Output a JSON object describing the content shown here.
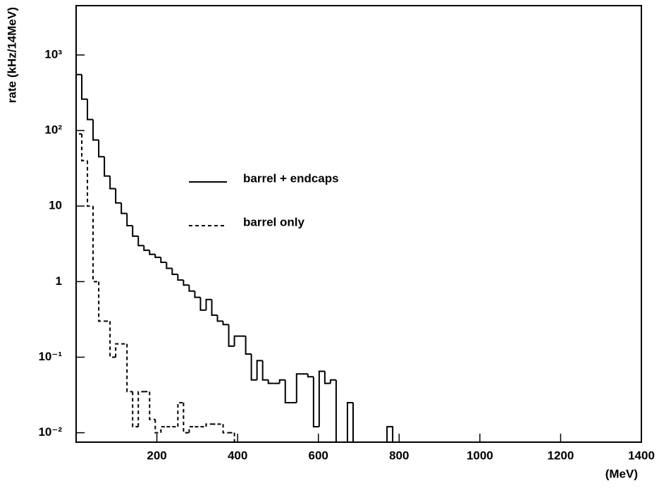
{
  "chart_data": {
    "type": "histogram",
    "y_label": "rate (kHz/14MeV)",
    "x_label": "(MeV)",
    "log_y": true,
    "xlim": [
      0,
      1400
    ],
    "xticks": [
      200,
      400,
      600,
      800,
      1000,
      1200,
      1400
    ],
    "ylim": [
      0.0075,
      4500
    ],
    "yticks": [
      {
        "value": 0.01,
        "label": "10⁻²"
      },
      {
        "value": 0.1,
        "label": "10⁻¹"
      },
      1,
      10,
      {
        "value": 100,
        "label": "10²"
      },
      {
        "value": 1000,
        "label": "10³"
      }
    ],
    "bins": [
      0,
      14,
      28,
      42,
      56,
      70,
      84,
      98,
      112,
      126,
      140,
      154,
      168,
      182,
      196,
      210,
      224,
      238,
      252,
      266,
      280,
      294,
      308,
      322,
      336,
      350,
      364,
      378,
      392,
      406,
      420,
      434,
      448,
      462,
      476,
      490,
      504,
      518,
      532,
      546,
      560,
      574,
      588,
      602,
      616,
      630,
      644,
      658,
      672,
      686,
      700,
      714,
      728,
      742,
      756,
      770,
      784
    ],
    "series": [
      {
        "name": "barrel + endcaps",
        "color": "#000000",
        "style": "solid",
        "values": [
          550,
          260,
          140,
          75,
          45,
          25,
          17,
          11,
          8,
          5.5,
          4,
          3,
          2.6,
          2.3,
          2.1,
          1.8,
          1.5,
          1.25,
          1.05,
          0.9,
          0.75,
          0.62,
          0.42,
          0.58,
          0.36,
          0.3,
          0.27,
          0.14,
          0.19,
          0.19,
          0.11,
          0.05,
          0.09,
          0.05,
          0.045,
          0.045,
          0.05,
          0.025,
          0.025,
          0.06,
          0.06,
          0.055,
          0.012,
          0.065,
          0.045,
          0.05,
          0,
          0,
          0.025,
          0,
          0,
          0,
          0,
          0,
          0,
          0.012
        ]
      },
      {
        "name": "barrel only",
        "color": "#000000",
        "style": "dashed",
        "values": [
          90,
          40,
          10,
          1,
          0.3,
          0.3,
          0.1,
          0.15,
          0.15,
          0.035,
          0.012,
          0.035,
          0.035,
          0.015,
          0.01,
          0.012,
          0.012,
          0.012,
          0.025,
          0.01,
          0.012,
          0.012,
          0.012,
          0.013,
          0.013,
          0.013,
          0.01,
          0.01,
          0,
          0,
          0,
          0,
          0,
          0,
          0,
          0,
          0,
          0,
          0,
          0,
          0,
          0,
          0,
          0,
          0,
          0,
          0,
          0,
          0,
          0,
          0,
          0,
          0,
          0,
          0,
          0
        ]
      }
    ]
  }
}
